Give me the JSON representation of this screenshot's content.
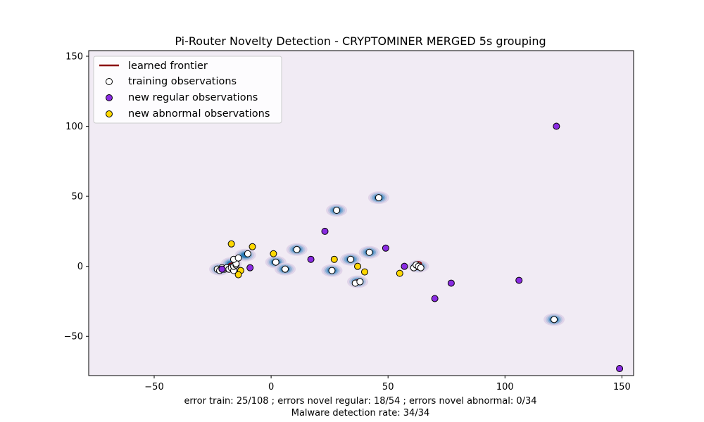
{
  "chart_data": {
    "type": "scatter",
    "title": "Pi-Router Novelty Detection - CRYPTOMINER MERGED 5s grouping",
    "xlabel": "",
    "ylabel": "",
    "xlim": [
      -78,
      155
    ],
    "ylim": [
      -78,
      154
    ],
    "x_ticks": [
      -50,
      0,
      50,
      100,
      150
    ],
    "y_ticks": [
      -50,
      0,
      50,
      100,
      150
    ],
    "x_tick_labels": [
      "−50",
      "0",
      "50",
      "100",
      "150"
    ],
    "y_tick_labels": [
      "−50",
      "0",
      "50",
      "100",
      "150"
    ],
    "background_color": "#f1ebf4",
    "contour_color": "#1f77b4",
    "frontier_color": "#8b0000",
    "legend_position": "top-left",
    "legend": [
      {
        "label": "learned frontier",
        "marker": "line",
        "color": "#8b0000"
      },
      {
        "label": "training observations",
        "marker": "circle",
        "color": "#ffffff"
      },
      {
        "label": "new regular observations",
        "marker": "circle",
        "color": "#8a2be2"
      },
      {
        "label": "new abnormal observations",
        "marker": "circle",
        "color": "#ffd700"
      }
    ],
    "series": [
      {
        "name": "training observations",
        "color": "#ffffff",
        "points": [
          [
            -23,
            -2
          ],
          [
            -22,
            -3
          ],
          [
            -21,
            -1
          ],
          [
            -20,
            -2
          ],
          [
            -19,
            -1
          ],
          [
            -18,
            -2
          ],
          [
            -17,
            -1
          ],
          [
            -16,
            -3
          ],
          [
            -16,
            0
          ],
          [
            -15,
            1
          ],
          [
            -15,
            2
          ],
          [
            -16,
            5
          ],
          [
            -14,
            6
          ],
          [
            -10,
            9
          ],
          [
            2,
            3
          ],
          [
            6,
            -2
          ],
          [
            11,
            12
          ],
          [
            26,
            -3
          ],
          [
            28,
            40
          ],
          [
            34,
            5
          ],
          [
            36,
            -12
          ],
          [
            38,
            -11
          ],
          [
            42,
            10
          ],
          [
            46,
            49
          ],
          [
            61,
            -1
          ],
          [
            62,
            1
          ],
          [
            63,
            0
          ],
          [
            64,
            -1
          ],
          [
            121,
            -38
          ]
        ]
      },
      {
        "name": "new regular observations",
        "color": "#8a2be2",
        "points": [
          [
            -21,
            -2
          ],
          [
            -9,
            -1
          ],
          [
            17,
            5
          ],
          [
            23,
            25
          ],
          [
            49,
            13
          ],
          [
            57,
            0
          ],
          [
            70,
            -23
          ],
          [
            77,
            -12
          ],
          [
            106,
            -10
          ],
          [
            122,
            100
          ],
          [
            149,
            -73
          ]
        ]
      },
      {
        "name": "new abnormal observations",
        "color": "#ffd700",
        "points": [
          [
            -17,
            16
          ],
          [
            -8,
            14
          ],
          [
            -13,
            -3
          ],
          [
            -14,
            -6
          ],
          [
            1,
            9
          ],
          [
            27,
            5
          ],
          [
            37,
            0
          ],
          [
            40,
            -4
          ],
          [
            55,
            -5
          ]
        ]
      }
    ],
    "contour_blobs": [
      [
        -22,
        -2
      ],
      [
        -17,
        2
      ],
      [
        -11,
        8
      ],
      [
        2,
        3
      ],
      [
        6,
        -2
      ],
      [
        11,
        12
      ],
      [
        26,
        -3
      ],
      [
        28,
        40
      ],
      [
        34,
        5
      ],
      [
        37,
        -11
      ],
      [
        42,
        10
      ],
      [
        46,
        49
      ],
      [
        63,
        0
      ],
      [
        121,
        -38
      ]
    ],
    "frontier_loops": [
      [
        -20,
        -2
      ],
      [
        -17,
        1
      ],
      [
        -15,
        2
      ],
      [
        37,
        -11
      ],
      [
        62,
        -1
      ],
      [
        63,
        2
      ]
    ],
    "caption_lines": [
      "error train: 25/108 ; errors novel regular: 18/54 ; errors novel abnormal: 0/34",
      "Malware detection rate: 34/34"
    ]
  }
}
